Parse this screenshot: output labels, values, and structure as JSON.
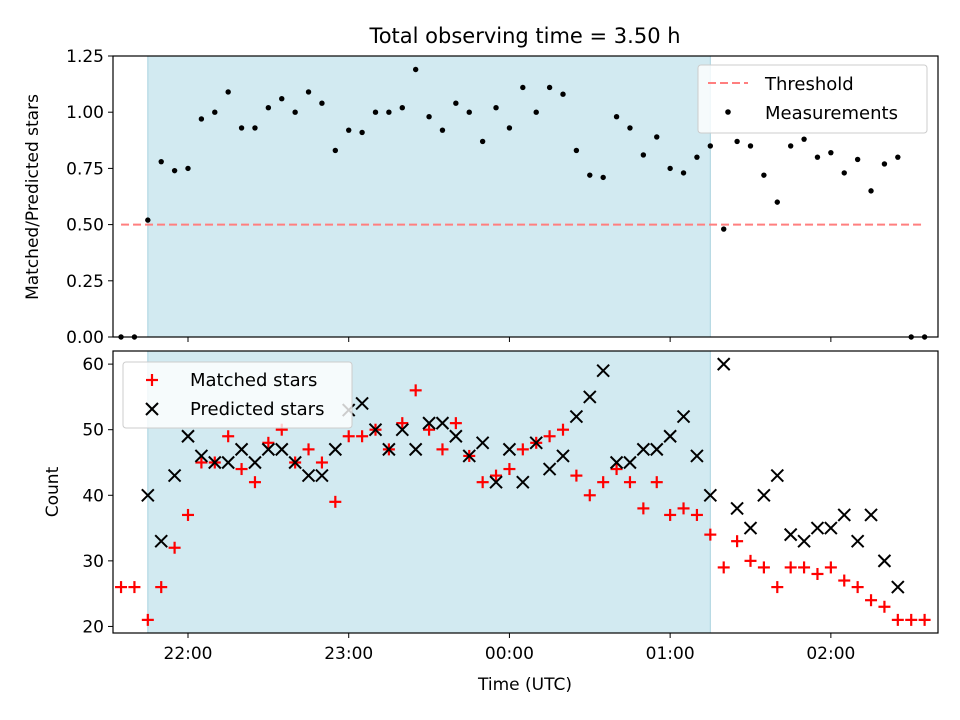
{
  "figure": {
    "title": "Total observing time = 3.50 h",
    "xlabel": "Time (UTC)"
  },
  "chart_data": [
    {
      "type": "scatter",
      "ylabel": "Matched/Predicted stars",
      "xlim": [
        "21:32",
        "02:40"
      ],
      "ylim": [
        0,
        1.25
      ],
      "yticks": [
        0.0,
        0.25,
        0.5,
        0.75,
        1.0,
        1.25
      ],
      "ytick_labels": [
        "0.00",
        "0.25",
        "0.50",
        "0.75",
        "1.00",
        "1.25"
      ],
      "xtick_labels_shown": false,
      "shaded_span": {
        "from": "21:45",
        "to": "01:15",
        "color": "#add8e6"
      },
      "legend_position": "top-right",
      "threshold": {
        "name": "Threshold",
        "value": 0.5,
        "from": "21:35",
        "to": "02:35",
        "color": "#ff7f7f",
        "style": "dashed"
      },
      "series": [
        {
          "name": "Measurements",
          "marker": "dot",
          "color": "#000000",
          "x": [
            "21:35",
            "21:40",
            "21:45",
            "21:50",
            "21:55",
            "22:00",
            "22:05",
            "22:10",
            "22:15",
            "22:20",
            "22:25",
            "22:30",
            "22:35",
            "22:40",
            "22:45",
            "22:50",
            "22:55",
            "23:00",
            "23:05",
            "23:10",
            "23:15",
            "23:20",
            "23:25",
            "23:30",
            "23:35",
            "23:40",
            "23:45",
            "23:50",
            "23:55",
            "00:00",
            "00:05",
            "00:10",
            "00:15",
            "00:20",
            "00:25",
            "00:30",
            "00:35",
            "00:40",
            "00:45",
            "00:50",
            "00:55",
            "01:00",
            "01:05",
            "01:10",
            "01:15",
            "01:20",
            "01:25",
            "01:30",
            "01:35",
            "01:40",
            "01:45",
            "01:50",
            "01:55",
            "02:00",
            "02:05",
            "02:10",
            "02:15",
            "02:20",
            "02:25",
            "02:30",
            "02:35"
          ],
          "y": [
            0.0,
            0.0,
            0.52,
            0.78,
            0.74,
            0.75,
            0.97,
            1.0,
            1.09,
            0.93,
            0.93,
            1.02,
            1.06,
            1.0,
            1.09,
            1.04,
            0.83,
            0.92,
            0.91,
            1.0,
            1.0,
            1.02,
            1.19,
            0.98,
            0.92,
            1.04,
            1.0,
            0.87,
            1.02,
            0.93,
            1.11,
            1.0,
            1.11,
            1.08,
            0.83,
            0.72,
            0.71,
            0.98,
            0.93,
            0.81,
            0.89,
            0.75,
            0.73,
            0.8,
            0.85,
            0.48,
            0.87,
            0.85,
            0.72,
            0.6,
            0.85,
            0.88,
            0.8,
            0.82,
            0.73,
            0.79,
            0.65,
            0.77,
            0.8,
            0.0,
            0.0
          ]
        }
      ]
    },
    {
      "type": "scatter",
      "ylabel": "Count",
      "xlim": [
        "21:32",
        "02:40"
      ],
      "ylim": [
        19,
        62
      ],
      "yticks": [
        20,
        30,
        40,
        50,
        60
      ],
      "ytick_labels": [
        "20",
        "30",
        "40",
        "50",
        "60"
      ],
      "xticks": [
        "22:00",
        "23:00",
        "00:00",
        "01:00",
        "02:00"
      ],
      "xtick_labels": [
        "22:00",
        "23:00",
        "00:00",
        "01:00",
        "02:00"
      ],
      "shaded_span": {
        "from": "21:45",
        "to": "01:15",
        "color": "#add8e6"
      },
      "legend_position": "top-left",
      "series": [
        {
          "name": "Matched stars",
          "marker": "plus",
          "color": "#ff0000",
          "x": [
            "21:35",
            "21:40",
            "21:45",
            "21:50",
            "21:55",
            "22:00",
            "22:05",
            "22:10",
            "22:15",
            "22:20",
            "22:25",
            "22:30",
            "22:35",
            "22:40",
            "22:45",
            "22:50",
            "22:55",
            "23:00",
            "23:05",
            "23:10",
            "23:15",
            "23:20",
            "23:25",
            "23:30",
            "23:35",
            "23:40",
            "23:45",
            "23:50",
            "23:55",
            "00:00",
            "00:05",
            "00:10",
            "00:15",
            "00:20",
            "00:25",
            "00:30",
            "00:35",
            "00:40",
            "00:45",
            "00:50",
            "00:55",
            "01:00",
            "01:05",
            "01:10",
            "01:15",
            "01:20",
            "01:25",
            "01:30",
            "01:35",
            "01:40",
            "01:45",
            "01:50",
            "01:55",
            "02:00",
            "02:05",
            "02:10",
            "02:15",
            "02:20",
            "02:25",
            "02:30",
            "02:35"
          ],
          "y": [
            26,
            26,
            21,
            26,
            32,
            37,
            45,
            45,
            49,
            44,
            42,
            48,
            50,
            45,
            47,
            45,
            39,
            49,
            49,
            50,
            47,
            51,
            56,
            50,
            47,
            51,
            46,
            42,
            43,
            44,
            47,
            48,
            49,
            50,
            43,
            40,
            42,
            44,
            42,
            38,
            42,
            37,
            38,
            37,
            34,
            29,
            33,
            30,
            29,
            26,
            29,
            29,
            28,
            29,
            27,
            26,
            24,
            23,
            21,
            21,
            21
          ]
        },
        {
          "name": "Predicted stars",
          "marker": "x",
          "color": "#000000",
          "x": [
            "21:45",
            "21:50",
            "21:55",
            "22:00",
            "22:05",
            "22:10",
            "22:15",
            "22:20",
            "22:25",
            "22:30",
            "22:35",
            "22:40",
            "22:45",
            "22:50",
            "22:55",
            "23:00",
            "23:05",
            "23:10",
            "23:15",
            "23:20",
            "23:25",
            "23:30",
            "23:35",
            "23:40",
            "23:45",
            "23:50",
            "23:55",
            "00:00",
            "00:05",
            "00:10",
            "00:15",
            "00:20",
            "00:25",
            "00:30",
            "00:35",
            "00:40",
            "00:45",
            "00:50",
            "00:55",
            "01:00",
            "01:05",
            "01:10",
            "01:15",
            "01:20",
            "01:25",
            "01:30",
            "01:35",
            "01:40",
            "01:45",
            "01:50",
            "01:55",
            "02:00",
            "02:05",
            "02:10",
            "02:15",
            "02:20",
            "02:25"
          ],
          "y": [
            40,
            33,
            43,
            49,
            46,
            45,
            45,
            47,
            45,
            47,
            47,
            45,
            43,
            43,
            47,
            53,
            54,
            50,
            47,
            50,
            47,
            51,
            51,
            49,
            46,
            48,
            42,
            47,
            42,
            48,
            44,
            46,
            52,
            55,
            59,
            45,
            45,
            47,
            47,
            49,
            52,
            46,
            40,
            60,
            38,
            35,
            40,
            43,
            34,
            33,
            35,
            35,
            37,
            33,
            37,
            30,
            26
          ]
        }
      ]
    }
  ]
}
